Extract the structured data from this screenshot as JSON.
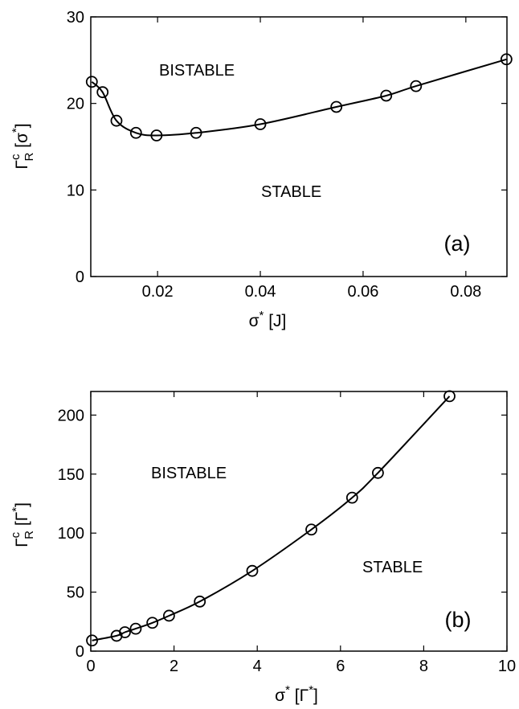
{
  "chart_data": [
    {
      "type": "line",
      "panel": "(a)",
      "xlabel": {
        "base": "σ",
        "sup": "*",
        "rest": " [J]"
      },
      "ylabel": {
        "base": "Γ",
        "sup": "c",
        "sub": "R",
        "rest": " [σ",
        "rest_sup": "*",
        "close": "]"
      },
      "xlim": [
        0.007,
        0.088
      ],
      "ylim": [
        0,
        30
      ],
      "xticks": [
        0.02,
        0.04,
        0.06,
        0.08
      ],
      "xtick_labels": [
        "0.02",
        "0.04",
        "0.06",
        "0.08"
      ],
      "yticks": [
        0,
        10,
        20,
        30
      ],
      "ytick_labels": [
        "0",
        "10",
        "20",
        "30"
      ],
      "grid": false,
      "marker": "open-circle",
      "series": [
        {
          "x": [
            0.0072,
            0.0093,
            0.012,
            0.0158,
            0.0198,
            0.0275,
            0.04,
            0.0548,
            0.0645,
            0.0703,
            0.0879
          ],
          "y": [
            22.5,
            21.3,
            18.0,
            16.6,
            16.3,
            16.6,
            17.6,
            19.6,
            20.9,
            22.0,
            25.1
          ]
        }
      ],
      "annotations": [
        "BISTABLE",
        "STABLE"
      ]
    },
    {
      "type": "line",
      "panel": "(b)",
      "xlabel": {
        "base": "σ",
        "sup": "*",
        "rest": " [Γ",
        "rest_sup": "*",
        "close": "]"
      },
      "ylabel": {
        "base": "Γ",
        "sup": "c",
        "sub": "R",
        "rest": " [Γ",
        "rest_sup": "*",
        "close": "]"
      },
      "xlim": [
        0,
        10
      ],
      "ylim": [
        0,
        220
      ],
      "xticks": [
        0,
        2,
        4,
        6,
        8,
        10
      ],
      "xtick_labels": [
        "0",
        "2",
        "4",
        "6",
        "8",
        "10"
      ],
      "yticks": [
        0,
        50,
        100,
        150,
        200
      ],
      "ytick_labels": [
        "0",
        "50",
        "100",
        "150",
        "200"
      ],
      "grid": false,
      "marker": "open-circle",
      "series": [
        {
          "x": [
            0.03,
            0.62,
            0.82,
            1.08,
            1.48,
            1.88,
            2.62,
            3.88,
            5.3,
            6.28,
            6.9,
            8.62
          ],
          "y": [
            9,
            13,
            16,
            19,
            24,
            30,
            42,
            68,
            103,
            130,
            151,
            216
          ]
        }
      ],
      "annotations": [
        "BISTABLE",
        "STABLE"
      ]
    }
  ]
}
